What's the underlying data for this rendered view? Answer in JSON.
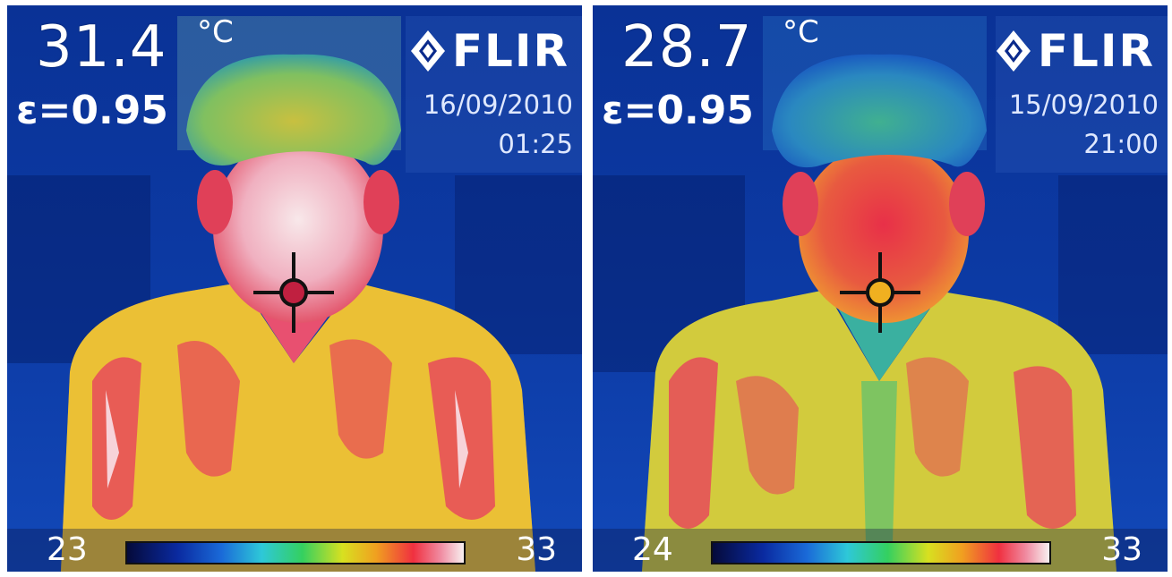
{
  "panels": [
    {
      "temperature": "31.4",
      "unit": "°C",
      "emissivity": "ε=0.95",
      "brand": "FLIR",
      "date": "16/09/2010",
      "time": "01:25",
      "scale_min": "23",
      "scale_max": "33"
    },
    {
      "temperature": "28.7",
      "unit": "°C",
      "emissivity": "ε=0.95",
      "brand": "FLIR",
      "date": "15/09/2010",
      "time": "21:00",
      "scale_min": "24",
      "scale_max": "33"
    }
  ],
  "colors": {
    "background": "#0a2a8c",
    "shirt_yellow": "#e8d83a",
    "shirt_hot": "#e84a4a",
    "face_hot_left": "#f4c8d0",
    "face_hot_right": "#e84050",
    "hair": "#8ac060"
  }
}
